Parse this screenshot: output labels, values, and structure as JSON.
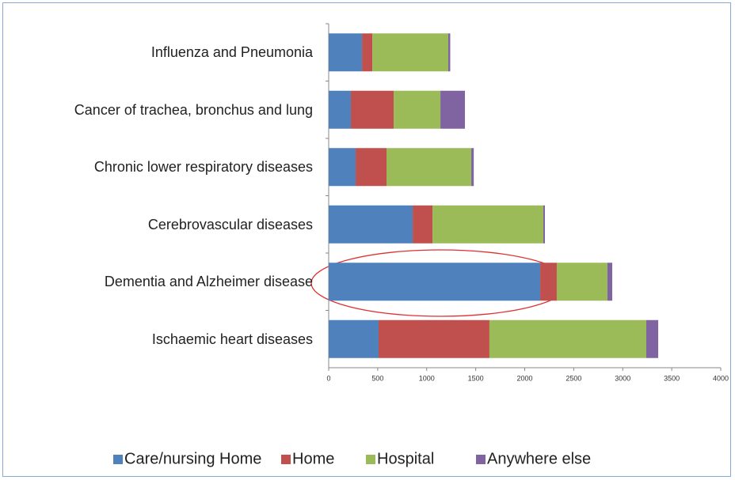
{
  "chart_data": {
    "type": "stacked-barh",
    "categories": [
      "Influenza and Pneumonia",
      "Cancer of trachea, bronchus and lung",
      "Chronic lower respiratory diseases",
      "Cerebrovascular diseases",
      "Dementia and Alzheimer disease",
      "Ischaemic heart diseases"
    ],
    "series": [
      {
        "name": "Care/nursing Home",
        "color": "#4f81bd",
        "values": [
          340,
          226,
          275,
          857,
          2158,
          509
        ]
      },
      {
        "name": "Home",
        "color": "#c0504d",
        "values": [
          105,
          437,
          315,
          202,
          169,
          1131
        ]
      },
      {
        "name": "Hospital",
        "color": "#9bbb59",
        "values": [
          775,
          477,
          865,
          1131,
          517,
          1600
        ]
      },
      {
        "name": "Anywhere else",
        "color": "#8064a2",
        "values": [
          20,
          250,
          25,
          16,
          49,
          122
        ]
      }
    ],
    "xlim": [
      0,
      4000
    ],
    "xticks": [
      0,
      500,
      1000,
      1500,
      2000,
      2500,
      3000,
      3500,
      4000
    ],
    "legend": "bottom"
  }
}
